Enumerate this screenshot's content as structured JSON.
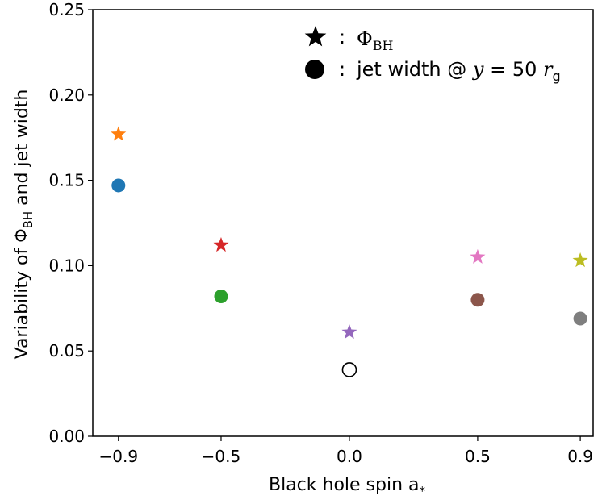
{
  "chart_data": {
    "type": "scatter",
    "xlabel": "Black hole spin a",
    "xlabel_sub": "*",
    "ylabel": "Variability of Φ",
    "ylabel_sub": "BH",
    "ylabel_tail": " and jet width",
    "xlim": [
      -1.0,
      0.95
    ],
    "ylim": [
      0.0,
      0.25
    ],
    "xticks": [
      {
        "value": -0.9,
        "label": "−0.9"
      },
      {
        "value": -0.5,
        "label": "−0.5"
      },
      {
        "value": 0.0,
        "label": "0.0"
      },
      {
        "value": 0.5,
        "label": "0.5"
      },
      {
        "value": 0.9,
        "label": "0.9"
      }
    ],
    "yticks": [
      {
        "value": 0.0,
        "label": "0.00"
      },
      {
        "value": 0.05,
        "label": "0.05"
      },
      {
        "value": 0.1,
        "label": "0.10"
      },
      {
        "value": 0.15,
        "label": "0.15"
      },
      {
        "value": 0.2,
        "label": "0.20"
      },
      {
        "value": 0.25,
        "label": "0.25"
      }
    ],
    "grid": false,
    "legend_position": "top-right",
    "legend": [
      {
        "marker": "star",
        "separator": ":",
        "text": "Φ",
        "sub": "BH"
      },
      {
        "marker": "circle",
        "separator": ":",
        "text": "jet width @ ",
        "math": "y",
        "eq": " = 50 ",
        "math2": "r",
        "sub": "g"
      }
    ],
    "series": [
      {
        "marker": "star",
        "points": [
          {
            "x": -0.9,
            "y": 0.177,
            "color": "#ff7f0e"
          },
          {
            "x": -0.5,
            "y": 0.112,
            "color": "#d62728"
          },
          {
            "x": 0.0,
            "y": 0.061,
            "color": "#9467bd"
          },
          {
            "x": 0.5,
            "y": 0.105,
            "color": "#e377c2"
          },
          {
            "x": 0.9,
            "y": 0.103,
            "color": "#bcbd22"
          }
        ]
      },
      {
        "marker": "circle",
        "points": [
          {
            "x": -0.9,
            "y": 0.147,
            "color": "#1f77b4",
            "filled": true
          },
          {
            "x": -0.5,
            "y": 0.082,
            "color": "#2ca02c",
            "filled": true
          },
          {
            "x": 0.0,
            "y": 0.039,
            "color": "#000000",
            "filled": false
          },
          {
            "x": 0.5,
            "y": 0.08,
            "color": "#8c564b",
            "filled": true
          },
          {
            "x": 0.9,
            "y": 0.069,
            "color": "#7f7f7f",
            "filled": true
          }
        ]
      }
    ]
  }
}
